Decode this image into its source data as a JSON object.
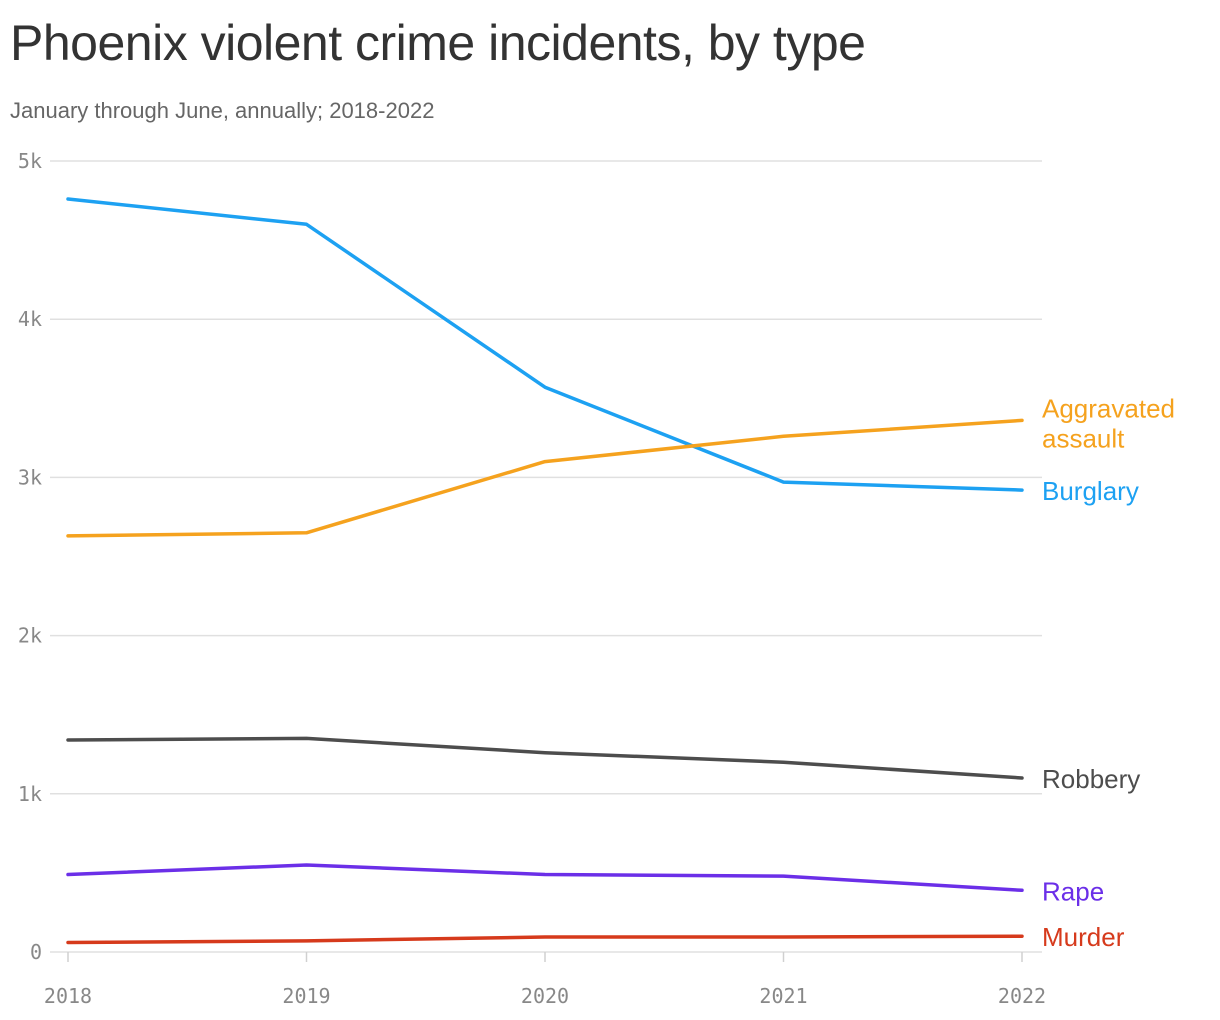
{
  "title": "Phoenix violent crime incidents, by type",
  "subtitle": "January through June, annually; 2018-2022",
  "chart_data": {
    "type": "line",
    "title": "Phoenix violent crime incidents, by type",
    "subtitle": "January through June, annually; 2018-2022",
    "xlabel": "",
    "ylabel": "",
    "x": [
      2018,
      2019,
      2020,
      2021,
      2022
    ],
    "x_tick_labels": [
      "2018",
      "2019",
      "2020",
      "2021",
      "2022"
    ],
    "ylim": [
      0,
      5000
    ],
    "y_ticks": [
      0,
      1000,
      2000,
      3000,
      4000,
      5000
    ],
    "y_tick_labels": [
      "0",
      "1k",
      "2k",
      "3k",
      "4k",
      "5k"
    ],
    "grid": "horizontal",
    "legend": "direct labels at right end of lines",
    "series": [
      {
        "name": "Burglary",
        "label_lines": [
          "Burglary"
        ],
        "color": "#1da1f2",
        "values": [
          4760,
          4600,
          3570,
          2970,
          2920
        ]
      },
      {
        "name": "Aggravated assault",
        "label_lines": [
          "Aggravated",
          "assault"
        ],
        "color": "#f5a21e",
        "values": [
          2630,
          2650,
          3100,
          3260,
          3360
        ]
      },
      {
        "name": "Robbery",
        "label_lines": [
          "Robbery"
        ],
        "color": "#4d4d4d",
        "values": [
          1340,
          1350,
          1260,
          1200,
          1100
        ]
      },
      {
        "name": "Rape",
        "label_lines": [
          "Rape"
        ],
        "color": "#6b2fe8",
        "values": [
          490,
          550,
          490,
          480,
          390
        ]
      },
      {
        "name": "Murder",
        "label_lines": [
          "Murder"
        ],
        "color": "#d63a1c",
        "values": [
          60,
          70,
          95,
          95,
          100
        ]
      }
    ]
  }
}
